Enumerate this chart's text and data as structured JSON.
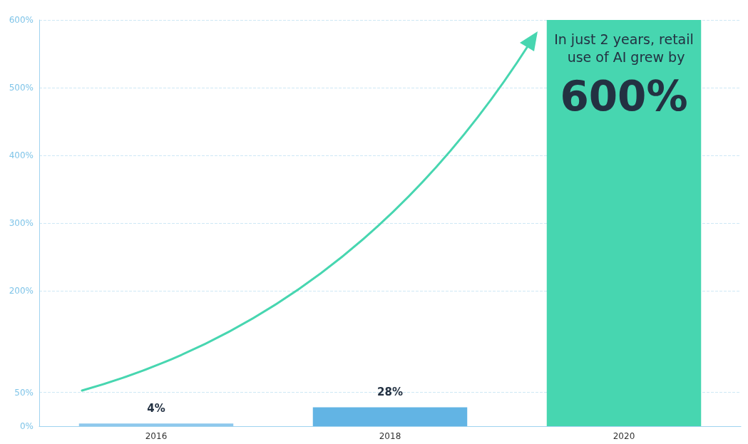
{
  "chart_data": {
    "type": "bar",
    "categories": [
      "2016",
      "2018",
      "2020"
    ],
    "values": [
      4,
      28,
      600
    ],
    "colors": [
      "#8ec8ec",
      "#62b4e4",
      "#47d6b0"
    ],
    "value_labels": [
      "4%",
      "28%",
      "600%"
    ],
    "ylim": [
      0,
      600
    ],
    "yticks": [
      {
        "value": 0,
        "label": "0%"
      },
      {
        "value": 50,
        "label": "50%"
      },
      {
        "value": 200,
        "label": "200%"
      },
      {
        "value": 300,
        "label": "300%"
      },
      {
        "value": 400,
        "label": "400%"
      },
      {
        "value": 500,
        "label": "500%"
      },
      {
        "value": 600,
        "label": "600%"
      }
    ],
    "grid": "y",
    "annotations": [
      "In just 2 years, retail use of AI grew by"
    ]
  }
}
